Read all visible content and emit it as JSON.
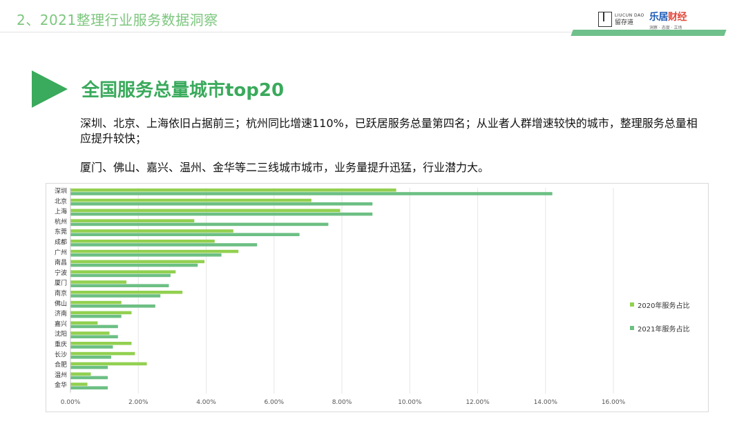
{
  "header": {
    "title": "2、2021整理行业服务数据洞察",
    "logo1_en": "LIUCUN DAO",
    "logo1_cn": "留存道",
    "logo2_main_a": "乐居",
    "logo2_main_b": "财经",
    "logo2_sub": "洞察 · 态度 · 立场"
  },
  "section": {
    "title": "全国服务总量城市top20",
    "para1": "深圳、北京、上海依旧占据前三；杭州同比增速110%，已跃居服务总量第四名；从业者人群增速较快的城市，整理服务总量相应提升较快；",
    "para2": "厦门、佛山、嘉兴、温州、金华等二三线城市城市，业务量提升迅猛，行业潜力大。"
  },
  "colors": {
    "accent": "#3aaa5c",
    "series2020": "#92d050",
    "series2021": "#6cbf83",
    "grid": "#e6e6e6"
  },
  "chart_data": {
    "type": "bar",
    "orientation": "horizontal",
    "title": "",
    "categories": [
      "深圳",
      "北京",
      "上海",
      "杭州",
      "东莞",
      "成都",
      "广州",
      "南昌",
      "宁波",
      "厦门",
      "南京",
      "佛山",
      "济南",
      "嘉兴",
      "沈阳",
      "重庆",
      "长沙",
      "合肥",
      "温州",
      "金华"
    ],
    "series": [
      {
        "name": "2020年服务占比",
        "color": "#92d050",
        "values": [
          9.6,
          7.1,
          7.95,
          3.65,
          4.8,
          4.25,
          4.95,
          3.95,
          3.1,
          1.65,
          3.3,
          1.5,
          1.8,
          0.8,
          1.15,
          1.8,
          1.9,
          2.25,
          0.6,
          0.5
        ]
      },
      {
        "name": "2021年服务占比",
        "color": "#6cbf83",
        "values": [
          14.2,
          8.9,
          8.9,
          7.6,
          6.75,
          5.5,
          4.45,
          3.75,
          2.95,
          2.9,
          2.65,
          2.5,
          1.5,
          1.4,
          1.4,
          1.25,
          1.2,
          1.1,
          1.1,
          1.1
        ]
      }
    ],
    "xlim": [
      0,
      16
    ],
    "xticks": [
      "0.00%",
      "2.00%",
      "4.00%",
      "6.00%",
      "8.00%",
      "10.00%",
      "12.00%",
      "14.00%",
      "16.00%"
    ],
    "grid": true,
    "legend_position": "right"
  }
}
